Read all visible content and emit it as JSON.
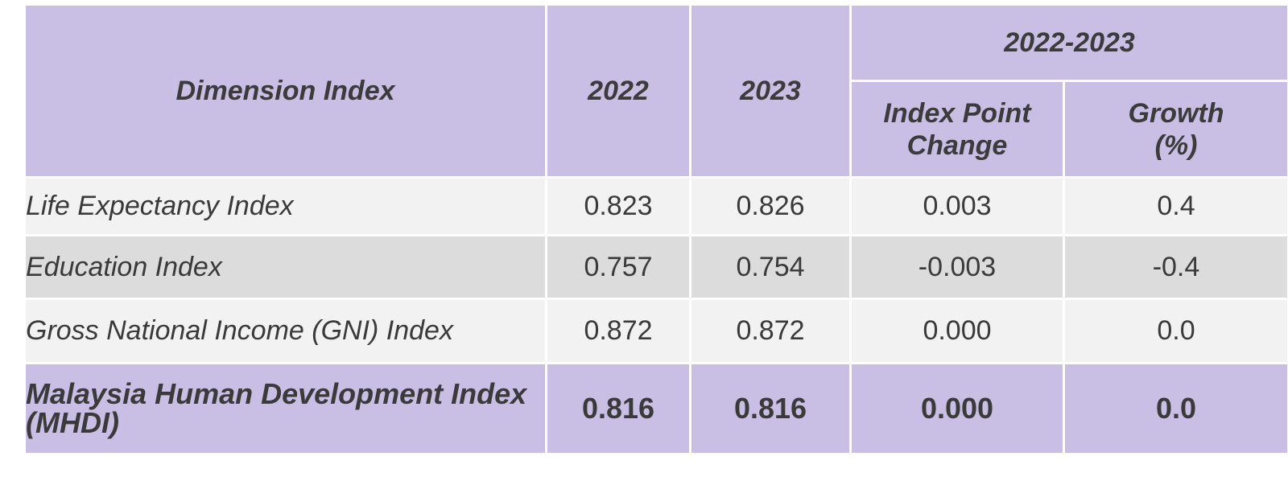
{
  "chart_data": {
    "type": "table",
    "header": {
      "dimension": "Dimension Index",
      "year1": "2022",
      "year2": "2023",
      "period": "2022-2023",
      "change": "Index Point Change",
      "growth_line1": "Growth",
      "growth_line2": "(%)"
    },
    "rows": [
      {
        "name": "Life Expectancy Index",
        "y2022": "0.823",
        "y2023": "0.826",
        "change": "0.003",
        "growth": "0.4"
      },
      {
        "name": "Education Index",
        "y2022": "0.757",
        "y2023": "0.754",
        "change": "-0.003",
        "growth": "-0.4"
      },
      {
        "name": "Gross National Income (GNI) Index",
        "y2022": "0.872",
        "y2023": "0.872",
        "change": "0.000",
        "growth": "0.0"
      },
      {
        "name": "Malaysia Human Development Index (MHDI)",
        "y2022": "0.816",
        "y2023": "0.816",
        "change": "0.000",
        "growth": "0.0"
      }
    ]
  },
  "colors": {
    "header_bg": "#c9bfe4",
    "row_light": "#f2f2f2",
    "row_dark": "#dcdcdc",
    "text": "#3a3a3a"
  }
}
